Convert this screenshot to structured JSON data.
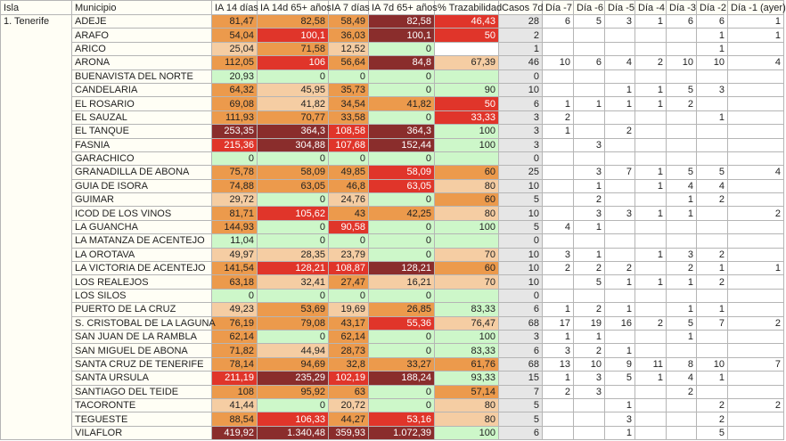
{
  "headers": [
    "Isla",
    "Municipio",
    "IA 14 días",
    "IA 14d 65+ años",
    "IA 7 días",
    "IA 7d 65+ años",
    "% Trazabilidad",
    "Casos 7d",
    "Día -7",
    "Día -6",
    "Día -5",
    "Día -4",
    "Día -3",
    "Día -2",
    "Día -1 (ayer)"
  ],
  "isla": "1. Tenerife",
  "level_colors": {
    "g": "#cdf7c9",
    "p": "#f5cda3",
    "o": "#ec9a4c",
    "r": "#e0352a",
    "d": "#8a2d2c",
    "w": "#ffffff"
  },
  "rows": [
    {
      "municipio": "ADEJE",
      "metrics": [
        "81,47",
        "82,58",
        "58,49",
        "82,58",
        "46,43"
      ],
      "levels": "ooodr",
      "casos": "28",
      "days": [
        "6",
        "5",
        "3",
        "1",
        "6",
        "6",
        "1"
      ]
    },
    {
      "municipio": "ARAFO",
      "metrics": [
        "54,04",
        "100,1",
        "36,03",
        "100,1",
        "50"
      ],
      "levels": "orodr",
      "casos": "2",
      "days": [
        "",
        "",
        "",
        "",
        "",
        "1",
        "1"
      ]
    },
    {
      "municipio": "ARICO",
      "metrics": [
        "25,04",
        "71,58",
        "12,52",
        "0",
        ""
      ],
      "levels": "popgw",
      "casos": "1",
      "days": [
        "",
        "",
        "",
        "",
        "",
        "1",
        ""
      ]
    },
    {
      "municipio": "ARONA",
      "metrics": [
        "112,05",
        "106",
        "56,64",
        "84,8",
        "67,39"
      ],
      "levels": "orodp",
      "casos": "46",
      "days": [
        "10",
        "6",
        "4",
        "2",
        "10",
        "10",
        "4"
      ]
    },
    {
      "municipio": "BUENAVISTA DEL NORTE",
      "metrics": [
        "20,93",
        "0",
        "0",
        "0",
        ""
      ],
      "levels": "ggggg",
      "casos": "0",
      "days": [
        "",
        "",
        "",
        "",
        "",
        "",
        ""
      ]
    },
    {
      "municipio": "CANDELARIA",
      "metrics": [
        "64,32",
        "45,95",
        "35,73",
        "0",
        "90"
      ],
      "levels": "opogg",
      "casos": "10",
      "days": [
        "",
        "",
        "1",
        "1",
        "5",
        "3",
        ""
      ]
    },
    {
      "municipio": "EL ROSARIO",
      "metrics": [
        "69,08",
        "41,82",
        "34,54",
        "41,82",
        "50"
      ],
      "levels": "opoor",
      "casos": "6",
      "days": [
        "1",
        "1",
        "1",
        "1",
        "2",
        "",
        ""
      ]
    },
    {
      "municipio": "EL SAUZAL",
      "metrics": [
        "111,93",
        "70,77",
        "33,58",
        "0",
        "33,33"
      ],
      "levels": "ooogr",
      "casos": "3",
      "days": [
        "2",
        "",
        "",
        "",
        "",
        "1",
        ""
      ]
    },
    {
      "municipio": "EL TANQUE",
      "metrics": [
        "253,35",
        "364,3",
        "108,58",
        "364,3",
        "100"
      ],
      "levels": "ddrdg",
      "casos": "3",
      "days": [
        "1",
        "",
        "2",
        "",
        "",
        "",
        ""
      ]
    },
    {
      "municipio": "FASNIA",
      "metrics": [
        "215,36",
        "304,88",
        "107,68",
        "152,44",
        "100"
      ],
      "levels": "rdrdg",
      "casos": "3",
      "days": [
        "",
        "3",
        "",
        "",
        "",
        "",
        ""
      ]
    },
    {
      "municipio": "GARACHICO",
      "metrics": [
        "0",
        "0",
        "0",
        "0",
        ""
      ],
      "levels": "ggggg",
      "casos": "0",
      "days": [
        "",
        "",
        "",
        "",
        "",
        "",
        ""
      ]
    },
    {
      "municipio": "GRANADILLA DE ABONA",
      "metrics": [
        "75,78",
        "58,09",
        "49,85",
        "58,09",
        "60"
      ],
      "levels": "oooro",
      "casos": "25",
      "days": [
        "",
        "3",
        "7",
        "1",
        "5",
        "5",
        "4"
      ]
    },
    {
      "municipio": "GUIA DE ISORA",
      "metrics": [
        "74,88",
        "63,05",
        "46,8",
        "63,05",
        "80"
      ],
      "levels": "ooorp",
      "casos": "10",
      "days": [
        "",
        "1",
        "",
        "1",
        "4",
        "4",
        ""
      ]
    },
    {
      "municipio": "GUIMAR",
      "metrics": [
        "29,72",
        "0",
        "24,76",
        "0",
        "60"
      ],
      "levels": "pgpgo",
      "casos": "5",
      "days": [
        "",
        "2",
        "",
        "",
        "1",
        "2",
        ""
      ]
    },
    {
      "municipio": "ICOD DE LOS VINOS",
      "metrics": [
        "81,71",
        "105,62",
        "43",
        "42,25",
        "80"
      ],
      "levels": "oroop",
      "casos": "10",
      "days": [
        "",
        "3",
        "3",
        "1",
        "1",
        "",
        "2"
      ]
    },
    {
      "municipio": "LA GUANCHA",
      "metrics": [
        "144,93",
        "0",
        "90,58",
        "0",
        "100"
      ],
      "levels": "ogrgg",
      "casos": "5",
      "days": [
        "4",
        "1",
        "",
        "",
        "",
        "",
        ""
      ]
    },
    {
      "municipio": "LA MATANZA DE ACENTEJO",
      "metrics": [
        "11,04",
        "0",
        "0",
        "0",
        ""
      ],
      "levels": "ggggg",
      "casos": "0",
      "days": [
        "",
        "",
        "",
        "",
        "",
        "",
        ""
      ]
    },
    {
      "municipio": "LA OROTAVA",
      "metrics": [
        "49,97",
        "28,35",
        "23,79",
        "0",
        "70"
      ],
      "levels": "pppgp",
      "casos": "10",
      "days": [
        "3",
        "1",
        "",
        "1",
        "3",
        "2",
        ""
      ]
    },
    {
      "municipio": "LA VICTORIA DE ACENTEJO",
      "metrics": [
        "141,54",
        "128,21",
        "108,87",
        "128,21",
        "60"
      ],
      "levels": "orrdo",
      "casos": "10",
      "days": [
        "2",
        "2",
        "2",
        "",
        "2",
        "1",
        "1"
      ]
    },
    {
      "municipio": "LOS REALEJOS",
      "metrics": [
        "63,18",
        "32,41",
        "27,47",
        "16,21",
        "70"
      ],
      "levels": "opopp",
      "casos": "10",
      "days": [
        "",
        "5",
        "1",
        "1",
        "1",
        "2",
        ""
      ]
    },
    {
      "municipio": "LOS SILOS",
      "metrics": [
        "0",
        "0",
        "0",
        "0",
        ""
      ],
      "levels": "ggggg",
      "casos": "0",
      "days": [
        "",
        "",
        "",
        "",
        "",
        "",
        ""
      ]
    },
    {
      "municipio": "PUERTO DE LA CRUZ",
      "metrics": [
        "49,23",
        "53,69",
        "19,69",
        "26,85",
        "83,33"
      ],
      "levels": "popog",
      "casos": "6",
      "days": [
        "1",
        "2",
        "1",
        "",
        "1",
        "1",
        ""
      ]
    },
    {
      "municipio": "S. CRISTOBAL DE LA LAGUNA",
      "metrics": [
        "76,19",
        "79,08",
        "43,17",
        "55,36",
        "76,47"
      ],
      "levels": "ooorp",
      "casos": "68",
      "days": [
        "17",
        "19",
        "16",
        "2",
        "5",
        "7",
        "2"
      ]
    },
    {
      "municipio": "SAN JUAN DE LA RAMBLA",
      "metrics": [
        "62,14",
        "0",
        "62,14",
        "0",
        "100"
      ],
      "levels": "ogogg",
      "casos": "3",
      "days": [
        "1",
        "1",
        "",
        "",
        "1",
        "",
        ""
      ]
    },
    {
      "municipio": "SAN MIGUEL DE ABONA",
      "metrics": [
        "71,82",
        "44,94",
        "28,73",
        "0",
        "83,33"
      ],
      "levels": "opogg",
      "casos": "6",
      "days": [
        "3",
        "2",
        "1",
        "",
        "",
        "",
        ""
      ]
    },
    {
      "municipio": "SANTA CRUZ DE TENERIFE",
      "metrics": [
        "78,14",
        "94,69",
        "32,8",
        "33,27",
        "61,76"
      ],
      "levels": "ooooo",
      "casos": "68",
      "days": [
        "13",
        "10",
        "9",
        "11",
        "8",
        "10",
        "7"
      ]
    },
    {
      "municipio": "SANTA URSULA",
      "metrics": [
        "211,19",
        "235,29",
        "102,19",
        "188,24",
        "93,33"
      ],
      "levels": "rdrdg",
      "casos": "15",
      "days": [
        "1",
        "3",
        "5",
        "1",
        "4",
        "1",
        ""
      ]
    },
    {
      "municipio": "SANTIAGO DEL TEIDE",
      "metrics": [
        "108",
        "95,92",
        "63",
        "0",
        "57,14"
      ],
      "levels": "ooogo",
      "casos": "7",
      "days": [
        "2",
        "3",
        "",
        "",
        "2",
        "",
        ""
      ]
    },
    {
      "municipio": "TACORONTE",
      "metrics": [
        "41,44",
        "0",
        "20,72",
        "0",
        "80"
      ],
      "levels": "pgpgp",
      "casos": "5",
      "days": [
        "",
        "",
        "1",
        "",
        "",
        "2",
        "2"
      ]
    },
    {
      "municipio": "TEGUESTE",
      "metrics": [
        "88,54",
        "106,33",
        "44,27",
        "53,16",
        "80"
      ],
      "levels": "ororp",
      "casos": "5",
      "days": [
        "",
        "",
        "3",
        "",
        "",
        "2",
        ""
      ]
    },
    {
      "municipio": "VILAFLOR",
      "metrics": [
        "419,92",
        "1.340,48",
        "359,93",
        "1.072,39",
        "100"
      ],
      "levels": "ddddg",
      "casos": "6",
      "days": [
        "",
        "",
        "1",
        "",
        "",
        "5",
        ""
      ]
    }
  ]
}
